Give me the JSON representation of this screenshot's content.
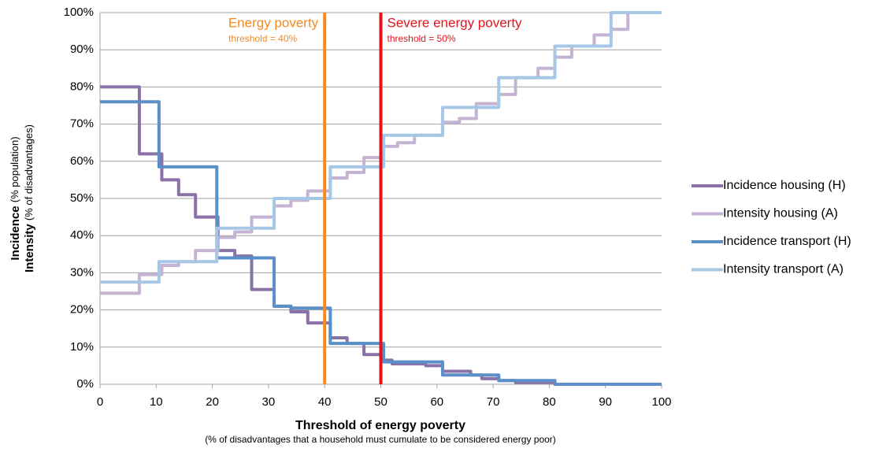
{
  "chart_data": {
    "type": "line",
    "step": "post",
    "ylabel_lines": [
      [
        "Incidence",
        "(% population)"
      ],
      [
        "Intensity",
        "(% of disadvantages)"
      ]
    ],
    "xlabel": "Threshold of energy poverty",
    "xlabel_note": "(% of disadvantages that a household must cumulate to be considered energy poor)",
    "xlim": [
      0,
      100
    ],
    "xticks": [
      0,
      10,
      20,
      30,
      40,
      50,
      60,
      70,
      80,
      90,
      100
    ],
    "ylim": [
      0,
      100
    ],
    "yticks": [
      {
        "value": 0,
        "label": "0%"
      },
      {
        "value": 10,
        "label": "10%"
      },
      {
        "value": 20,
        "label": "20%"
      },
      {
        "value": 30,
        "label": "30%"
      },
      {
        "value": 40,
        "label": "40%"
      },
      {
        "value": 50,
        "label": "50%"
      },
      {
        "value": 60,
        "label": "60%"
      },
      {
        "value": 70,
        "label": "70%"
      },
      {
        "value": 80,
        "label": "80%"
      },
      {
        "value": 90,
        "label": "90%"
      },
      {
        "value": 100,
        "label": "100%"
      }
    ],
    "grid": true,
    "legend": "right",
    "vlines": [
      {
        "x": 40,
        "color": "#f7891f",
        "label": "Energy poverty",
        "sublabel": "threshold = 40%"
      },
      {
        "x": 50,
        "color": "#e3131b",
        "label": "Severe energy poverty",
        "sublabel": "threshold = 50%"
      }
    ],
    "series": [
      {
        "name": "Incidence housing (H)",
        "color": "#8a72a8",
        "x": [
          0,
          7,
          11,
          14,
          17,
          21,
          24,
          27,
          31,
          34,
          37,
          41,
          44,
          47,
          50,
          52,
          58,
          61,
          66,
          68,
          71,
          74,
          81,
          100
        ],
        "values": [
          80,
          62,
          55,
          51,
          45,
          36,
          34.5,
          25.5,
          21,
          19.5,
          16.5,
          12.5,
          11,
          8,
          6.5,
          5.5,
          5,
          3.5,
          2.5,
          1.5,
          1,
          0.5,
          0,
          0
        ]
      },
      {
        "name": "Intensity housing (A)",
        "color": "#c5b3d3",
        "x": [
          0,
          7,
          11,
          14,
          17,
          21,
          24,
          27,
          31,
          34,
          37,
          41,
          44,
          47,
          50,
          53,
          56,
          61,
          64,
          67,
          71,
          74,
          78,
          81,
          84,
          88,
          91,
          94,
          100
        ],
        "values": [
          24.5,
          29.5,
          32,
          33,
          36,
          39.5,
          41,
          45,
          48,
          49.5,
          52,
          55.5,
          57,
          61,
          64,
          65,
          67,
          70.5,
          71.5,
          75.5,
          78,
          82.5,
          85,
          88,
          91,
          94,
          95.5,
          100,
          100
        ]
      },
      {
        "name": "Incidence transport (H)",
        "color": "#5b8fc7",
        "x": [
          0,
          10.5,
          20.8,
          31,
          34,
          41,
          50.5,
          61,
          71,
          81,
          100
        ],
        "values": [
          76,
          58.5,
          34,
          21,
          20.5,
          11,
          6,
          2.5,
          1,
          0,
          0
        ]
      },
      {
        "name": "Intensity transport (A)",
        "color": "#a6c8e6",
        "x": [
          0,
          10.5,
          20.8,
          31,
          41,
          50.5,
          61,
          71,
          81,
          91,
          100
        ],
        "values": [
          27.5,
          33,
          42,
          50,
          58.5,
          67,
          74.5,
          82.5,
          91,
          100,
          100
        ]
      }
    ]
  }
}
